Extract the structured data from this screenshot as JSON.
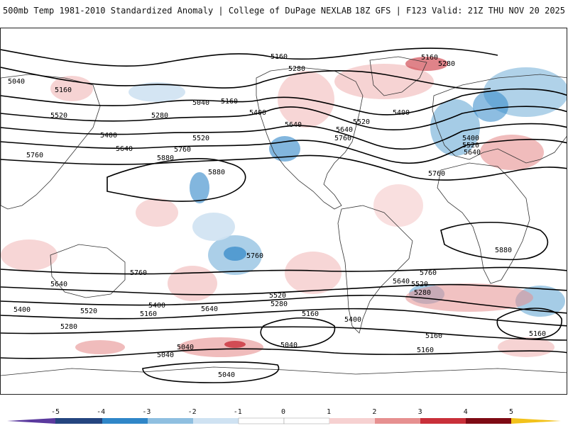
{
  "header": {
    "title": "500mb Temp 1981-2010 Standardized Anomaly | College of DuPage NEXLAB",
    "run_info": "18Z GFS | F123 Valid: 21Z THU NOV 20 2025"
  },
  "map": {
    "field": "500mb Temp Standardized Anomaly",
    "contour_field": "500mb Height (dam)",
    "contour_labels": [
      {
        "text": "5160",
        "region": "north-pacific-top"
      },
      {
        "text": "5040",
        "region": "siberia-west"
      },
      {
        "text": "5160",
        "region": "siberia-central"
      },
      {
        "text": "5040",
        "region": "bering"
      },
      {
        "text": "5160",
        "region": "bering-east"
      },
      {
        "text": "5280",
        "region": "alaska"
      },
      {
        "text": "5160",
        "region": "greenland"
      },
      {
        "text": "5280",
        "region": "greenland-east"
      },
      {
        "text": "5520",
        "region": "east-asia"
      },
      {
        "text": "5280",
        "region": "north-pacific"
      },
      {
        "text": "5400",
        "region": "canada"
      },
      {
        "text": "5400",
        "region": "east-asia-south"
      },
      {
        "text": "5520",
        "region": "north-pacific-central"
      },
      {
        "text": "5640",
        "region": "usa-west"
      },
      {
        "text": "5640",
        "region": "usa-east"
      },
      {
        "text": "5520",
        "region": "usa-northeast"
      },
      {
        "text": "5760",
        "region": "usa-south"
      },
      {
        "text": "5400",
        "region": "atlantic"
      },
      {
        "text": "5400",
        "region": "europe"
      },
      {
        "text": "5520",
        "region": "europe-south"
      },
      {
        "text": "5640",
        "region": "mediterranean"
      },
      {
        "text": "5640",
        "region": "china"
      },
      {
        "text": "5760",
        "region": "pacific-west"
      },
      {
        "text": "5760",
        "region": "india"
      },
      {
        "text": "5880",
        "region": "pacific-central"
      },
      {
        "text": "5880",
        "region": "hawaii"
      },
      {
        "text": "5760",
        "region": "africa"
      },
      {
        "text": "5880",
        "region": "southern-africa"
      },
      {
        "text": "5760",
        "region": "south-pacific"
      },
      {
        "text": "5760",
        "region": "australia-south"
      },
      {
        "text": "5760",
        "region": "south-atlantic"
      },
      {
        "text": "5640",
        "region": "south-indian"
      },
      {
        "text": "5640",
        "region": "tasman"
      },
      {
        "text": "5640",
        "region": "argentina"
      },
      {
        "text": "5520",
        "region": "south-atlantic-mid"
      },
      {
        "text": "5520",
        "region": "south-pacific-mid"
      },
      {
        "text": "5520",
        "region": "south-indian-mid"
      },
      {
        "text": "5400",
        "region": "south-indian-low"
      },
      {
        "text": "5400",
        "region": "south-pacific-low"
      },
      {
        "text": "5400",
        "region": "drake"
      },
      {
        "text": "5280",
        "region": "south-atlantic-low"
      },
      {
        "text": "5280",
        "region": "south-pacific-south"
      },
      {
        "text": "5280",
        "region": "southern-ocean-west"
      },
      {
        "text": "5160",
        "region": "southern-ocean-a"
      },
      {
        "text": "5160",
        "region": "southern-ocean-b"
      },
      {
        "text": "5160",
        "region": "southern-ocean-c"
      },
      {
        "text": "5160",
        "region": "southern-ocean-d"
      },
      {
        "text": "5160",
        "region": "southern-ocean-e"
      },
      {
        "text": "5040",
        "region": "antarctica-a"
      },
      {
        "text": "5040",
        "region": "antarctica-b"
      },
      {
        "text": "5040",
        "region": "antarctica-c"
      },
      {
        "text": "5040",
        "region": "antarctica-d"
      }
    ]
  },
  "colorbar": {
    "ticks": [
      "-5",
      "-4",
      "-3",
      "-2",
      "-1",
      "0",
      "1",
      "2",
      "3",
      "4",
      "5"
    ],
    "colors": [
      "#5b3a9e",
      "#24457f",
      "#2f86c8",
      "#8fbfe0",
      "#cfe2f2",
      "#ffffff",
      "#ffffff",
      "#f6d1d1",
      "#e69090",
      "#c9303a",
      "#7e0a14",
      "#f2c21b"
    ]
  }
}
